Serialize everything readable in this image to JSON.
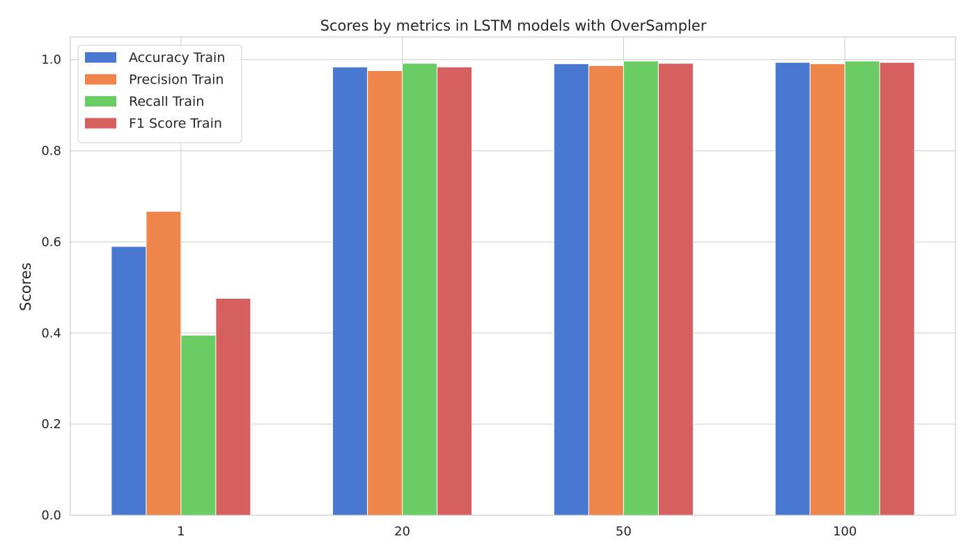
{
  "chart_data": {
    "type": "bar",
    "title": "Scores by metrics in LSTM models with OverSampler",
    "xlabel": "",
    "ylabel": "Scores",
    "categories": [
      "1",
      "20",
      "50",
      "100"
    ],
    "ylim": [
      0,
      1.05
    ],
    "yticks": [
      "0.0",
      "0.2",
      "0.4",
      "0.6",
      "0.8",
      "1.0"
    ],
    "grid": true,
    "legend_position": "top-left",
    "series": [
      {
        "name": "Accuracy Train",
        "color": "#4878d0",
        "values": [
          0.59,
          0.984,
          0.991,
          0.994
        ]
      },
      {
        "name": "Precision Train",
        "color": "#ee854a",
        "values": [
          0.667,
          0.976,
          0.987,
          0.991
        ]
      },
      {
        "name": "Recall Train",
        "color": "#6acc64",
        "values": [
          0.395,
          0.992,
          0.997,
          0.997
        ]
      },
      {
        "name": "F1 Score Train",
        "color": "#d65f5f",
        "values": [
          0.476,
          0.984,
          0.992,
          0.994
        ]
      }
    ]
  }
}
